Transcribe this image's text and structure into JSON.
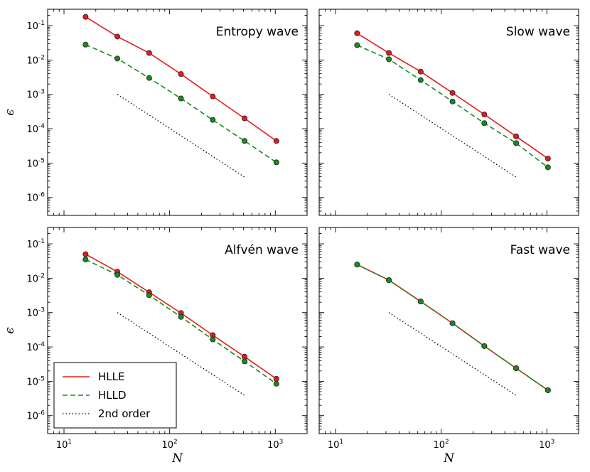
{
  "chart_data": [
    {
      "type": "line",
      "title": "Entropy wave",
      "xlabel": "",
      "ylabel": "ϵ",
      "xscale": "log",
      "yscale": "log",
      "xlim": [
        7,
        2000
      ],
      "ylim": [
        3e-07,
        0.3
      ],
      "series": [
        {
          "name": "HLLE",
          "x": [
            16,
            32,
            64,
            128,
            256,
            512,
            1024
          ],
          "values": [
            0.18,
            0.048,
            0.016,
            0.0039,
            0.00087,
            0.0002,
            4.4e-05
          ]
        },
        {
          "name": "HLLD",
          "x": [
            16,
            32,
            64,
            128,
            256,
            512,
            1024
          ],
          "values": [
            0.028,
            0.011,
            0.003,
            0.00076,
            0.00018,
            4.4e-05,
            1.05e-05
          ]
        },
        {
          "name": "2nd order",
          "x": [
            32,
            512
          ],
          "values": [
            0.001,
            3.9e-06
          ]
        }
      ]
    },
    {
      "type": "line",
      "title": "Slow wave",
      "xlabel": "",
      "ylabel": "",
      "xscale": "log",
      "yscale": "log",
      "xlim": [
        7,
        2000
      ],
      "ylim": [
        3e-07,
        0.3
      ],
      "series": [
        {
          "name": "HLLE",
          "x": [
            16,
            32,
            64,
            128,
            256,
            512,
            1024
          ],
          "values": [
            0.06,
            0.016,
            0.0046,
            0.0011,
            0.00026,
            6e-05,
            1.35e-05
          ]
        },
        {
          "name": "HLLD",
          "x": [
            16,
            32,
            64,
            128,
            256,
            512,
            1024
          ],
          "values": [
            0.027,
            0.0105,
            0.0026,
            0.00062,
            0.000145,
            3.8e-05,
            7.5e-06
          ]
        },
        {
          "name": "2nd order",
          "x": [
            32,
            512
          ],
          "values": [
            0.001,
            3.9e-06
          ]
        }
      ]
    },
    {
      "type": "line",
      "title": "Alfvén wave",
      "xlabel": "N",
      "ylabel": "ϵ",
      "xscale": "log",
      "yscale": "log",
      "xlim": [
        7,
        2000
      ],
      "ylim": [
        3e-07,
        0.3
      ],
      "series": [
        {
          "name": "HLLE",
          "x": [
            16,
            32,
            64,
            128,
            256,
            512,
            1024
          ],
          "values": [
            0.05,
            0.0155,
            0.0039,
            0.00097,
            0.00022,
            5.2e-05,
            1.18e-05
          ]
        },
        {
          "name": "HLLD",
          "x": [
            16,
            32,
            64,
            128,
            256,
            512,
            1024
          ],
          "values": [
            0.035,
            0.0125,
            0.0032,
            0.00075,
            0.000165,
            3.8e-05,
            8.5e-06
          ]
        },
        {
          "name": "2nd order",
          "x": [
            32,
            512
          ],
          "values": [
            0.001,
            3.9e-06
          ]
        }
      ]
    },
    {
      "type": "line",
      "title": "Fast wave",
      "xlabel": "N",
      "ylabel": "",
      "xscale": "log",
      "yscale": "log",
      "xlim": [
        7,
        2000
      ],
      "ylim": [
        3e-07,
        0.3
      ],
      "series": [
        {
          "name": "HLLE",
          "x": [
            16,
            32,
            64,
            128,
            256,
            512,
            1024
          ],
          "values": [
            0.025,
            0.0088,
            0.0021,
            0.00049,
            0.000106,
            2.4e-05,
            5.5e-06
          ]
        },
        {
          "name": "HLLD",
          "x": [
            16,
            32,
            64,
            128,
            256,
            512,
            1024
          ],
          "values": [
            0.025,
            0.0088,
            0.0021,
            0.00049,
            0.000106,
            2.4e-05,
            5.5e-06
          ]
        },
        {
          "name": "2nd order",
          "x": [
            32,
            512
          ],
          "values": [
            0.001,
            3.9e-06
          ]
        }
      ]
    }
  ],
  "legend": {
    "placement": "lower-left",
    "panel": 2,
    "entries": [
      {
        "label": "HLLE",
        "style": "solid"
      },
      {
        "label": "HLLD",
        "style": "dashed"
      },
      {
        "label": "2nd order",
        "style": "dotted"
      }
    ]
  },
  "x_ticks": {
    "labels": [
      {
        "base": "10",
        "exp": "1",
        "value": 10
      },
      {
        "base": "10",
        "exp": "2",
        "value": 100
      },
      {
        "base": "10",
        "exp": "3",
        "value": 1000
      }
    ]
  },
  "y_ticks": {
    "labels": [
      {
        "base": "10",
        "exp": "-1",
        "value": 0.1
      },
      {
        "base": "10",
        "exp": "-2",
        "value": 0.01
      },
      {
        "base": "10",
        "exp": "-3",
        "value": 0.001
      },
      {
        "base": "10",
        "exp": "-4",
        "value": 0.0001
      },
      {
        "base": "10",
        "exp": "-5",
        "value": 1e-05
      },
      {
        "base": "10",
        "exp": "-6",
        "value": 1e-06
      }
    ]
  },
  "colors": {
    "HLLE": "#e41a1c",
    "HLLD": "#1a8a1a",
    "2nd order": "#000000",
    "marker_edge": "#222222"
  }
}
